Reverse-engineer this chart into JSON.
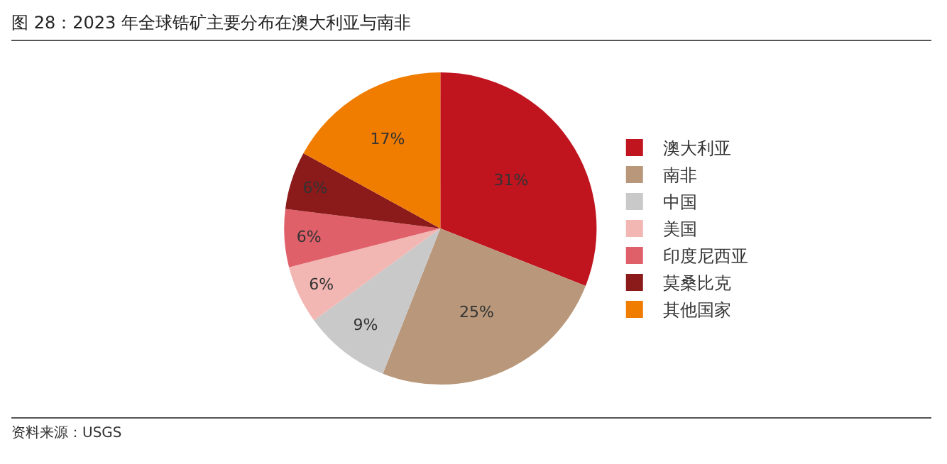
{
  "chart_data": {
    "type": "pie",
    "title": "图 28：2023 年全球锆矿主要分布在澳大利亚与南非",
    "categories": [
      "澳大利亚",
      "南非",
      "中国",
      "美国",
      "印度尼西亚",
      "莫桑比克",
      "其他国家"
    ],
    "values": [
      31,
      25,
      9,
      6,
      6,
      6,
      17
    ],
    "colors": [
      "#c0141f",
      "#b8977a",
      "#c9c9c9",
      "#f2b6b3",
      "#e0606a",
      "#8b1a1a",
      "#f07c00"
    ],
    "value_labels": [
      "31%",
      "25%",
      "9%",
      "6%",
      "6%",
      "6%",
      "17%"
    ],
    "legend": "right",
    "annotations": [
      "资料来源：USGS"
    ]
  }
}
